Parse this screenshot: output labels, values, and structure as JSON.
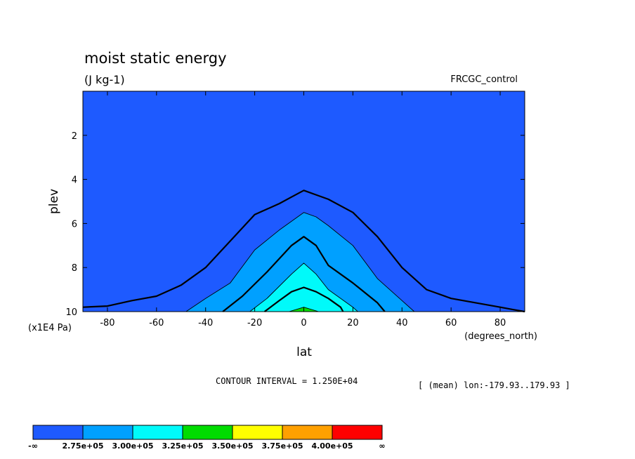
{
  "header": {
    "title": "moist static energy",
    "units": "(J kg-1)",
    "dataset": "FRCGC_control"
  },
  "footer": {
    "contour_interval": "CONTOUR INTERVAL = 1.250E+04",
    "mean_note": "[ (mean) lon:-179.93..179.93 ]"
  },
  "chart_data": {
    "type": "contour",
    "xlabel": "lat",
    "x_units": "(degrees_north)",
    "ylabel": "plev",
    "y_units": "(x1E4 Pa)",
    "xlim": [
      -90,
      90
    ],
    "ylim": [
      10,
      0
    ],
    "x_ticks": [
      -80,
      -60,
      -40,
      -20,
      0,
      20,
      40,
      60,
      80
    ],
    "x_tick_labels": [
      "-80",
      "-60",
      "-40",
      "-20",
      "0",
      "20",
      "40",
      "60",
      "80"
    ],
    "y_ticks": [
      2,
      4,
      6,
      8,
      10
    ],
    "y_tick_labels": [
      "2",
      "4",
      "6",
      "8",
      "10"
    ],
    "contour_interval": 12500,
    "contours": [
      {
        "level": 275000,
        "thick": true,
        "points": [
          [
            -90,
            9.8
          ],
          [
            -80,
            9.75
          ],
          [
            -70,
            9.5
          ],
          [
            -60,
            9.3
          ],
          [
            -50,
            8.8
          ],
          [
            -40,
            8.0
          ],
          [
            -30,
            6.8
          ],
          [
            -20,
            5.6
          ],
          [
            -10,
            5.1
          ],
          [
            -5,
            4.8
          ],
          [
            0,
            4.5
          ],
          [
            5,
            4.7
          ],
          [
            10,
            4.9
          ],
          [
            20,
            5.5
          ],
          [
            30,
            6.6
          ],
          [
            40,
            8.0
          ],
          [
            50,
            9.0
          ],
          [
            60,
            9.4
          ],
          [
            70,
            9.6
          ],
          [
            80,
            9.8
          ],
          [
            85,
            9.9
          ],
          [
            90,
            10.0
          ]
        ]
      },
      {
        "level": 287500,
        "thick": false,
        "points": [
          [
            -48,
            10.0
          ],
          [
            -40,
            9.4
          ],
          [
            -30,
            8.7
          ],
          [
            -20,
            7.2
          ],
          [
            -10,
            6.3
          ],
          [
            0,
            5.5
          ],
          [
            5,
            5.7
          ],
          [
            10,
            6.1
          ],
          [
            20,
            7.0
          ],
          [
            30,
            8.5
          ],
          [
            40,
            9.5
          ],
          [
            45,
            10.0
          ]
        ]
      },
      {
        "level": 300000,
        "thick": true,
        "points": [
          [
            -33,
            10.0
          ],
          [
            -25,
            9.3
          ],
          [
            -15,
            8.2
          ],
          [
            -5,
            7.0
          ],
          [
            0,
            6.6
          ],
          [
            5,
            7.0
          ],
          [
            10,
            7.9
          ],
          [
            20,
            8.7
          ],
          [
            30,
            9.6
          ],
          [
            33,
            10.0
          ]
        ]
      },
      {
        "level": 312500,
        "thick": false,
        "points": [
          [
            -22,
            10.0
          ],
          [
            -15,
            9.4
          ],
          [
            -5,
            8.3
          ],
          [
            0,
            7.8
          ],
          [
            5,
            8.3
          ],
          [
            10,
            9.0
          ],
          [
            20,
            9.8
          ],
          [
            22,
            10.0
          ]
        ]
      },
      {
        "level": 325000,
        "thick": true,
        "points": [
          [
            -16,
            10.0
          ],
          [
            -10,
            9.5
          ],
          [
            -5,
            9.1
          ],
          [
            0,
            8.9
          ],
          [
            5,
            9.1
          ],
          [
            10,
            9.4
          ],
          [
            15,
            9.8
          ],
          [
            16,
            10.0
          ]
        ]
      },
      {
        "level": 337500,
        "thick": false,
        "points": [
          [
            -6,
            10.0
          ],
          [
            0,
            9.8
          ],
          [
            6,
            10.0
          ]
        ]
      }
    ],
    "colorbar": {
      "colors": [
        "#1e5aff",
        "#00a0ff",
        "#00fafa",
        "#00dc00",
        "#ffff00",
        "#ffa000",
        "#ff0000"
      ],
      "labels": [
        "-∞",
        "2.75e+05",
        "3.00e+05",
        "3.25e+05",
        "3.50e+05",
        "3.75e+05",
        "4.00e+05",
        "∞"
      ]
    }
  }
}
